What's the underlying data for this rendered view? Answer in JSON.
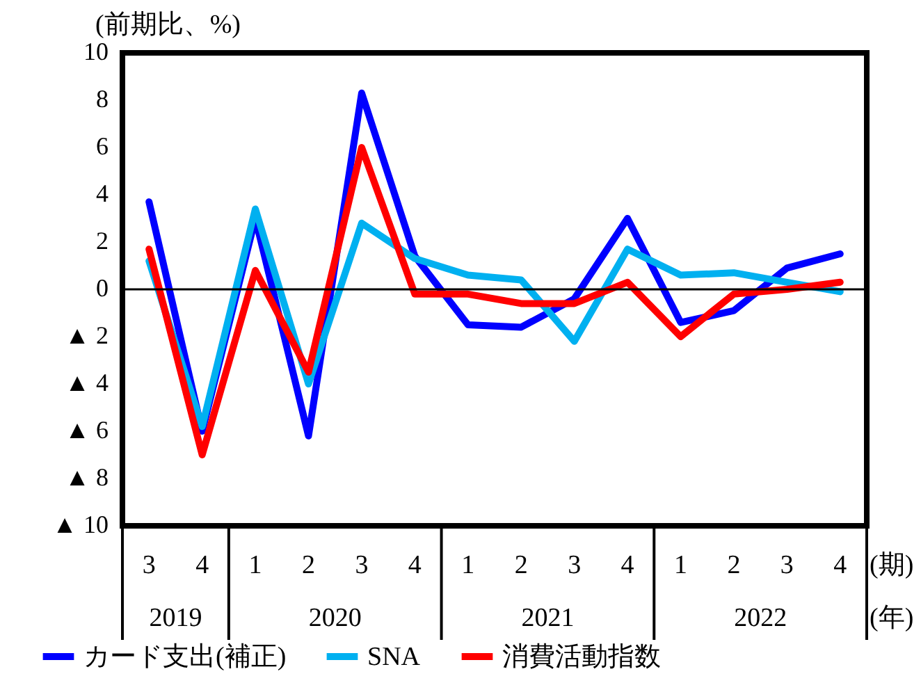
{
  "chart_data": {
    "type": "line",
    "ylabel": "(前期比、%)",
    "categories": [
      "3",
      "4",
      "1",
      "2",
      "3",
      "4",
      "1",
      "2",
      "3",
      "4",
      "1",
      "2",
      "3",
      "4"
    ],
    "series": [
      {
        "name": "カード支出(補正)",
        "color": "#0000ff",
        "values": [
          3.7,
          -6.0,
          3.0,
          -6.2,
          8.3,
          1.4,
          -1.5,
          -1.6,
          -0.4,
          3.0,
          -1.4,
          -0.9,
          0.9,
          1.5
        ]
      },
      {
        "name": "SNA",
        "color": "#00b0f0",
        "values": [
          1.2,
          -5.8,
          3.4,
          -4.0,
          2.8,
          1.3,
          0.6,
          0.4,
          -2.2,
          1.7,
          0.6,
          0.7,
          0.3,
          -0.1
        ]
      },
      {
        "name": "消費活動指数",
        "color": "#ff0000",
        "values": [
          1.7,
          -7.0,
          0.8,
          -3.5,
          6.0,
          -0.2,
          -0.2,
          -0.6,
          -0.6,
          0.3,
          -2.0,
          -0.2,
          0.0,
          0.3
        ]
      }
    ],
    "ylim": [
      -10,
      10
    ],
    "yticks": [
      10,
      8,
      6,
      4,
      2,
      0,
      {
        "value": -2,
        "label": "▲ 2"
      },
      {
        "value": -4,
        "label": "▲ 4"
      },
      {
        "value": -6,
        "label": "▲ 6"
      },
      {
        "value": -8,
        "label": "▲ 8"
      },
      {
        "value": -10,
        "label": "▲ 10"
      }
    ],
    "annotations": [
      "2019",
      "2020",
      "2021",
      "2022",
      "(期)",
      "(年)"
    ],
    "ref_lines": [
      {
        "axis": "y",
        "value": 0
      }
    ],
    "grid": false,
    "legend": "bottom",
    "marker": "none",
    "line_style": "solid"
  }
}
